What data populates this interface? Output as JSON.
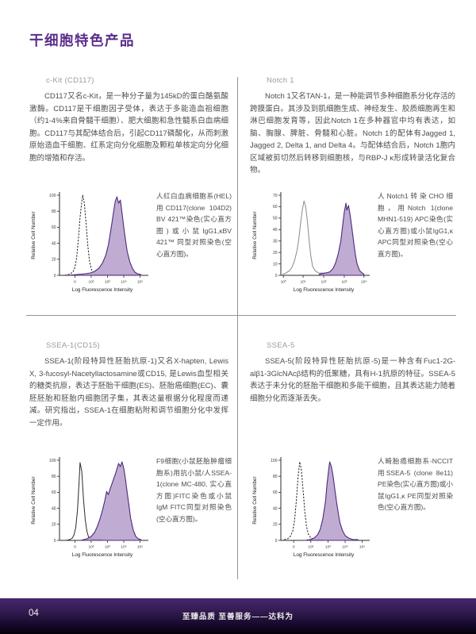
{
  "page": {
    "title": "干细胞特色产品",
    "accent_color": "#5b2d8a",
    "divider_color": "#8f959b"
  },
  "footer": {
    "page_number": "04",
    "slogan": "至臻品质 至善服务——达科为"
  },
  "sections": [
    {
      "header": "c-Kit (CD117)",
      "body": "CD117又名c-Kit，是一种分子量为145kD的蛋白酪氨酸激酶。CD117是干细胞因子受体，表达于多能造血祖细胞（约1-4%来自骨髓干细胞）、肥大细胞和急性髓系白血病细胞。CD117与其配体结合后，引起CD117磷酸化，从而刺激原始造血干细胞、红系定向分化细胞及颗粒单核定向分化细胞的增殖和存活。",
      "caption": "人红白血病细胞系(HEL)用CD117(clone 104D2) BV 421™染色(实心直方图)或小鼠IgG1,κBV 421™ 同型对照染色(空心直方图)。"
    },
    {
      "header": "Notch 1",
      "body": "Notch 1又名TAN-1，是一种能调节多种细胞系分化存活的跨膜蛋白。其涉及到肌细胞生成、神经发生、胶质细胞再生和淋巴细胞发育等，因此Notch 1在多种器官中均有表达，如脑、胸腺、脾脏、骨髓和心脏。Notch 1的配体有Jagged 1, Jagged 2, Delta 1, and Delta 4。与配体结合后，Notch 1胞内区域被剪切然后转移到细胞核，与RBP-J κ形成转录活化复合物。",
      "caption": "人Notch1转染CHO细胞，用Notch 1(clone MHN1-519) APC染色(实心直方图)或小鼠IgG1,κ APC同型对照染色(空心直方图)。"
    },
    {
      "header": "SSEA-1(CD15)",
      "body": "SSEA-1(阶段特异性胚胎抗原-1)又名X-hapten, Lewis X, 3-fucosyl-Nacetyllactosamine或CD15, 是Lewis血型相关的糖类抗原，表达于胚胎干细胞(ES)、胚胎癌细胞(EC)、囊胚胚胎和胚胎内细胞团子集，其表达量根据分化程度而递减。研究指出，SSEA-1在细胞粘附和调节细胞分化中发挥一定作用。",
      "caption": "F9细胞(小鼠胚胎肿瘤细胞系)用抗小鼠/人SSEA-1(clone MC-480, 实心直方图)FITC染色或小鼠IgM FITC同型对照染色(空心直方图)。"
    },
    {
      "header": "SSEA-5",
      "body": "SSEA-5(阶段特异性胚胎抗原-5)是一种含有Fuc1-2G-alβ1-3GlcNAcβ结构的低聚糖，具有H-1抗原的特征。SSEA-5表达于未分化的胚胎干细胞和多能干细胞，且其表达能力随着细胞分化而逐渐丢失。",
      "caption": "人畸胎癌细胞系-NCCIT用SSEA-5 (clone 8e11) PE染色(实心直方图)或小鼠IgG1,κ PE同型对照染色(空心直方图)。"
    }
  ],
  "chart_data": [
    {
      "type": "area",
      "title": "c-Kit (CD117) flow cytometry histogram",
      "xlabel": "Log Fluorescence Intensity",
      "ylabel": "Relative Cell Number",
      "ylim": [
        0,
        100
      ],
      "yticks": [
        0,
        20,
        40,
        60,
        80,
        100
      ],
      "xticks": [
        "0",
        "10²",
        "10³",
        "10⁴",
        "10⁵"
      ],
      "xtick_pos": [
        0.18,
        0.37,
        0.56,
        0.75,
        0.94
      ],
      "series": [
        {
          "name": "mouse IgG1,κ BV421 isotype control (open histogram)",
          "style": "dashed",
          "color": "#1c1c1c",
          "values": [
            [
              0.06,
              0
            ],
            [
              0.1,
              1
            ],
            [
              0.13,
              2
            ],
            [
              0.16,
              5
            ],
            [
              0.18,
              10
            ],
            [
              0.2,
              22
            ],
            [
              0.22,
              45
            ],
            [
              0.24,
              72
            ],
            [
              0.26,
              92
            ],
            [
              0.27,
              100
            ],
            [
              0.29,
              90
            ],
            [
              0.31,
              65
            ],
            [
              0.33,
              38
            ],
            [
              0.35,
              18
            ],
            [
              0.37,
              8
            ],
            [
              0.39,
              3
            ],
            [
              0.42,
              1
            ],
            [
              0.5,
              1
            ],
            [
              0.6,
              1
            ],
            [
              0.8,
              1
            ],
            [
              0.94,
              1
            ]
          ]
        },
        {
          "name": "CD117 BV421 stained (solid histogram)",
          "style": "filled",
          "color": "#4b2a7b",
          "fill": "#b7a0cc",
          "values": [
            [
              0.1,
              0
            ],
            [
              0.2,
              1
            ],
            [
              0.3,
              2
            ],
            [
              0.36,
              3
            ],
            [
              0.41,
              5
            ],
            [
              0.46,
              9
            ],
            [
              0.5,
              15
            ],
            [
              0.54,
              25
            ],
            [
              0.57,
              38
            ],
            [
              0.6,
              57
            ],
            [
              0.63,
              78
            ],
            [
              0.65,
              92
            ],
            [
              0.67,
              98
            ],
            [
              0.69,
              90
            ],
            [
              0.71,
              94
            ],
            [
              0.73,
              78
            ],
            [
              0.75,
              60
            ],
            [
              0.77,
              44
            ],
            [
              0.79,
              30
            ],
            [
              0.82,
              17
            ],
            [
              0.85,
              9
            ],
            [
              0.88,
              4
            ],
            [
              0.91,
              2
            ],
            [
              0.95,
              1
            ]
          ]
        }
      ]
    },
    {
      "type": "area",
      "title": "Notch 1 flow cytometry histogram",
      "xlabel": "Log Fluorescence Intensity",
      "ylabel": "Relative Cell Number",
      "ylim": [
        0,
        70
      ],
      "yticks": [
        0,
        10,
        20,
        30,
        40,
        50,
        60,
        70
      ],
      "xticks": [
        "10⁰",
        "10¹",
        "10²",
        "10³",
        "10⁴"
      ],
      "xtick_pos": [
        0.03,
        0.26,
        0.5,
        0.74,
        0.97
      ],
      "series": [
        {
          "name": "mouse IgG1,κ APC isotype control (open histogram)",
          "style": "solid",
          "color": "#8a8a8a",
          "values": [
            [
              0.02,
              1
            ],
            [
              0.06,
              2
            ],
            [
              0.1,
              4
            ],
            [
              0.13,
              7
            ],
            [
              0.16,
              13
            ],
            [
              0.19,
              22
            ],
            [
              0.21,
              32
            ],
            [
              0.23,
              45
            ],
            [
              0.25,
              57
            ],
            [
              0.27,
              65
            ],
            [
              0.29,
              60
            ],
            [
              0.31,
              47
            ],
            [
              0.33,
              31
            ],
            [
              0.35,
              17
            ],
            [
              0.37,
              8
            ],
            [
              0.4,
              4
            ],
            [
              0.44,
              2
            ],
            [
              0.5,
              2
            ],
            [
              0.56,
              1
            ],
            [
              0.65,
              1
            ],
            [
              0.75,
              1
            ]
          ]
        },
        {
          "name": "Notch 1 APC stained (solid histogram)",
          "style": "filled",
          "color": "#4b2a7b",
          "fill": "#b7a0cc",
          "values": [
            [
              0.45,
              1
            ],
            [
              0.52,
              2
            ],
            [
              0.57,
              3
            ],
            [
              0.61,
              6
            ],
            [
              0.64,
              11
            ],
            [
              0.67,
              19
            ],
            [
              0.7,
              30
            ],
            [
              0.72,
              43
            ],
            [
              0.74,
              55
            ],
            [
              0.76,
              63
            ],
            [
              0.77,
              57
            ],
            [
              0.79,
              61
            ],
            [
              0.81,
              52
            ],
            [
              0.83,
              41
            ],
            [
              0.85,
              29
            ],
            [
              0.87,
              18
            ],
            [
              0.89,
              10
            ],
            [
              0.92,
              4
            ],
            [
              0.95,
              2
            ],
            [
              0.97,
              1
            ]
          ]
        }
      ]
    },
    {
      "type": "area",
      "title": "SSEA-1 (CD15) flow cytometry histogram",
      "xlabel": "Log Fluorescence Intensity",
      "ylabel": "Relative Cell Number",
      "ylim": [
        0,
        100
      ],
      "yticks": [
        0,
        20,
        40,
        60,
        80,
        100
      ],
      "xticks": [
        "0",
        "10²",
        "10³",
        "10⁴",
        "10⁵"
      ],
      "xtick_pos": [
        0.18,
        0.37,
        0.56,
        0.75,
        0.94
      ],
      "series": [
        {
          "name": "mouse IgM FITC isotype control (open histogram)",
          "style": "solid",
          "color": "#2a2a2a",
          "values": [
            [
              0.08,
              0
            ],
            [
              0.12,
              1
            ],
            [
              0.15,
              3
            ],
            [
              0.17,
              7
            ],
            [
              0.19,
              16
            ],
            [
              0.21,
              38
            ],
            [
              0.23,
              75
            ],
            [
              0.24,
              97
            ],
            [
              0.26,
              86
            ],
            [
              0.28,
              52
            ],
            [
              0.3,
              26
            ],
            [
              0.32,
              11
            ],
            [
              0.34,
              4
            ],
            [
              0.37,
              2
            ],
            [
              0.42,
              1
            ],
            [
              0.5,
              1
            ]
          ]
        },
        {
          "name": "SSEA-1 FITC stained (solid histogram)",
          "style": "filled",
          "color": "#4b2a7b",
          "fill": "#b7a0cc",
          "values": [
            [
              0.25,
              0
            ],
            [
              0.32,
              2
            ],
            [
              0.37,
              5
            ],
            [
              0.41,
              10
            ],
            [
              0.44,
              17
            ],
            [
              0.47,
              26
            ],
            [
              0.5,
              37
            ],
            [
              0.53,
              50
            ],
            [
              0.55,
              61
            ],
            [
              0.57,
              57
            ],
            [
              0.59,
              64
            ],
            [
              0.61,
              70
            ],
            [
              0.63,
              76
            ],
            [
              0.65,
              82
            ],
            [
              0.67,
              89
            ],
            [
              0.69,
              96
            ],
            [
              0.71,
              92
            ],
            [
              0.73,
              98
            ],
            [
              0.75,
              90
            ],
            [
              0.77,
              76
            ],
            [
              0.79,
              60
            ],
            [
              0.81,
              44
            ],
            [
              0.83,
              28
            ],
            [
              0.86,
              13
            ],
            [
              0.89,
              5
            ],
            [
              0.92,
              2
            ],
            [
              0.95,
              1
            ]
          ]
        }
      ]
    },
    {
      "type": "area",
      "title": "SSEA-5 flow cytometry histogram",
      "xlabel": "Log Fluorescence Intensity",
      "ylabel": "Relative Cell Number",
      "ylim": [
        0,
        100
      ],
      "yticks": [
        0,
        20,
        40,
        60,
        80,
        100
      ],
      "xticks": [
        "0",
        "10²",
        "10³",
        "10⁴",
        "10⁵"
      ],
      "xtick_pos": [
        0.15,
        0.35,
        0.55,
        0.75,
        0.95
      ],
      "series": [
        {
          "name": "mouse IgG1,κ PE isotype control (open histogram)",
          "style": "dashed",
          "color": "#1c1c1c",
          "values": [
            [
              0.04,
              1
            ],
            [
              0.08,
              2
            ],
            [
              0.11,
              5
            ],
            [
              0.14,
              12
            ],
            [
              0.16,
              25
            ],
            [
              0.18,
              48
            ],
            [
              0.2,
              78
            ],
            [
              0.22,
              98
            ],
            [
              0.24,
              88
            ],
            [
              0.26,
              62
            ],
            [
              0.28,
              36
            ],
            [
              0.3,
              17
            ],
            [
              0.32,
              8
            ],
            [
              0.35,
              3
            ],
            [
              0.4,
              1
            ],
            [
              0.5,
              1
            ]
          ]
        },
        {
          "name": "SSEA-5 PE stained (solid histogram)",
          "style": "filled",
          "color": "#4b2a7b",
          "fill": "#b7a0cc",
          "values": [
            [
              0.28,
              0
            ],
            [
              0.34,
              1
            ],
            [
              0.39,
              3
            ],
            [
              0.43,
              7
            ],
            [
              0.46,
              14
            ],
            [
              0.49,
              27
            ],
            [
              0.52,
              48
            ],
            [
              0.54,
              71
            ],
            [
              0.56,
              90
            ],
            [
              0.57,
              98
            ],
            [
              0.59,
              92
            ],
            [
              0.61,
              80
            ],
            [
              0.63,
              64
            ],
            [
              0.65,
              48
            ],
            [
              0.67,
              34
            ],
            [
              0.69,
              22
            ],
            [
              0.72,
              12
            ],
            [
              0.75,
              6
            ],
            [
              0.79,
              3
            ],
            [
              0.84,
              1
            ],
            [
              0.9,
              1
            ]
          ]
        }
      ]
    }
  ]
}
